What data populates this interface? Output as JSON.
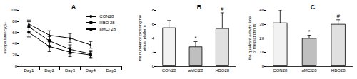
{
  "chart_data": [
    {
      "type": "line",
      "title": "A",
      "ylabel": "escape latency(S)",
      "categories": [
        "Day1",
        "Day2",
        "Day3",
        "Day4",
        "Day5"
      ],
      "series": [
        {
          "name": "CON28",
          "color": "#000000",
          "marker": "circle",
          "line_style": "solid",
          "values": [
            60,
            35,
            25,
            20,
            null
          ],
          "errors": [
            8,
            9,
            8,
            6,
            null
          ]
        },
        {
          "name": "HBO 28",
          "color": "#000000",
          "marker": "square",
          "line_style": "solid",
          "values": [
            70,
            45,
            30,
            22,
            null
          ],
          "errors": [
            9,
            8,
            8,
            6,
            null
          ]
        },
        {
          "name": "aMCI 28",
          "color": "#000000",
          "marker": "triangle",
          "line_style": "solid",
          "values": [
            75,
            55,
            50,
            38,
            null
          ],
          "errors": [
            7,
            8,
            8,
            6,
            null
          ]
        }
      ],
      "ylim": [
        0,
        100
      ],
      "yticks": [
        0,
        20,
        40,
        60,
        80,
        100
      ],
      "grid": false,
      "legend": "upper right"
    },
    {
      "type": "bar",
      "title": "B",
      "ylabel": "the number of crossing the virtual platform",
      "categories": [
        "CON28",
        "aMCI28",
        "HBO28"
      ],
      "values": [
        5.5,
        2.8,
        5.4
      ],
      "errors": [
        1.0,
        0.7,
        2.2
      ],
      "annotations": [
        null,
        "*",
        "#"
      ],
      "colors": [
        "#f2f2f2",
        "#bfbfbf",
        "#e0e0e0"
      ],
      "ylim": [
        0,
        8
      ],
      "yticks": [
        0,
        2,
        4,
        6,
        8
      ],
      "grid": false
    },
    {
      "type": "bar",
      "title": "C",
      "ylabel": "the quadrant activity time of the platform (s)",
      "categories": [
        "CON28",
        "aMCI28",
        "HBO28"
      ],
      "values": [
        31,
        20,
        30
      ],
      "errors": [
        9,
        2,
        3
      ],
      "annotations": [
        null,
        "*",
        "#"
      ],
      "colors": [
        "#f2f2f2",
        "#bfbfbf",
        "#e0e0e0"
      ],
      "ylim": [
        0,
        40
      ],
      "yticks": [
        0,
        10,
        20,
        30,
        40
      ],
      "grid": false
    }
  ]
}
